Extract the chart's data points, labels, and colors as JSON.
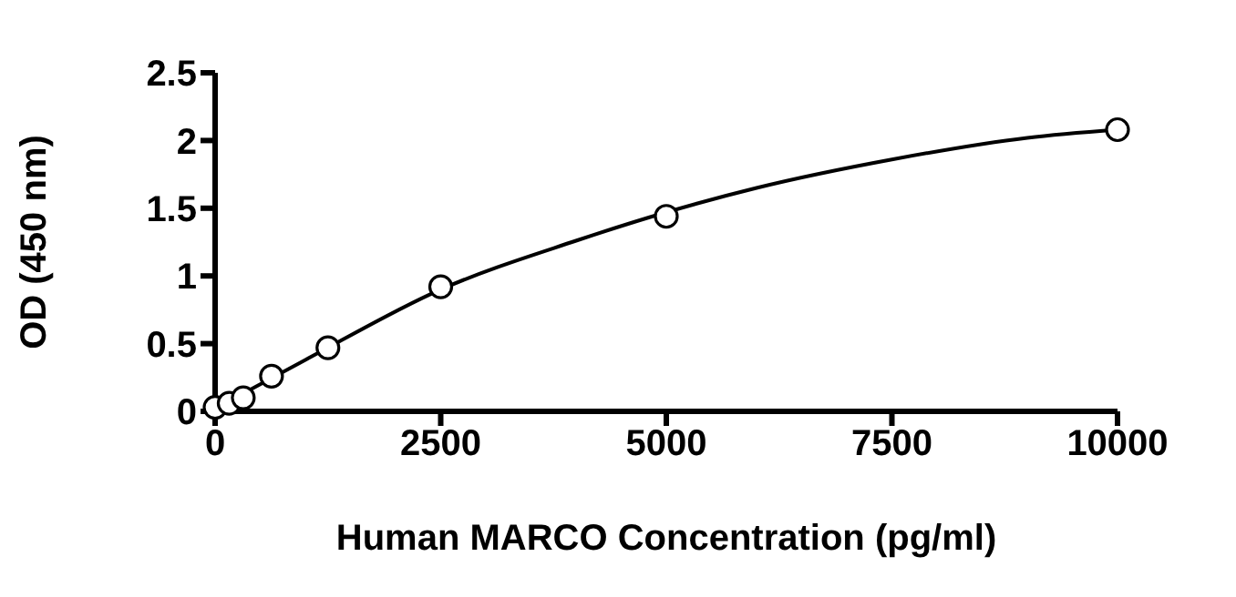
{
  "chart_data": {
    "type": "scatter",
    "xlabel": "Human MARCO Concentration (pg/ml)",
    "ylabel": "OD (450 nm)",
    "xlim": [
      0,
      10000
    ],
    "xticks": [
      0,
      2500,
      5000,
      7500,
      10000
    ],
    "ylim": [
      0,
      2.5
    ],
    "yticks": [
      0,
      0.5,
      1,
      1.5,
      2,
      2.5
    ],
    "grid": false,
    "legend": false,
    "marker": "circle",
    "series": [
      {
        "color": "#000000",
        "x": [
          0,
          156,
          312,
          625,
          1250,
          2500,
          5000,
          10000
        ],
        "values": [
          0.03,
          0.06,
          0.1,
          0.26,
          0.47,
          0.92,
          1.44,
          2.08
        ]
      },
      {
        "type": "line",
        "color": "#000000",
        "line_style": "solid",
        "marker": "none",
        "x": [
          0,
          1000,
          2500,
          4000,
          5000,
          6000,
          7500,
          9000,
          10000
        ],
        "values": [
          0.02,
          0.38,
          0.9,
          1.26,
          1.47,
          1.65,
          1.86,
          2.02,
          2.08
        ]
      }
    ]
  }
}
